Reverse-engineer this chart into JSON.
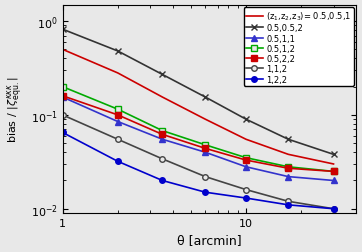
{
  "xlabel": "θ [arcmin]",
  "xlim": [
    1,
    40
  ],
  "ylim": [
    0.009,
    1.5
  ],
  "theta": [
    1.0,
    2.0,
    3.5,
    6.0,
    10.0,
    17.0,
    30.0
  ],
  "series": [
    {
      "label": "(z$_1$,z$_2$,z$_3$)= 0.5,0.5,1",
      "color": "#cc0000",
      "marker": "None",
      "markerface": "filled",
      "linestyle": "-",
      "markersize": 4,
      "lw": 1.2,
      "values": [
        0.5,
        0.28,
        0.155,
        0.09,
        0.055,
        0.038,
        0.03
      ]
    },
    {
      "label": "0.5,0.5,2",
      "color": "#333333",
      "marker": "x",
      "markerface": "filled",
      "linestyle": "-",
      "markersize": 5,
      "lw": 1.2,
      "values": [
        0.82,
        0.48,
        0.27,
        0.155,
        0.09,
        0.055,
        0.038
      ]
    },
    {
      "label": "0.5,1,1",
      "color": "#3333cc",
      "marker": "^",
      "markerface": "filled",
      "linestyle": "-",
      "markersize": 4,
      "lw": 1.2,
      "values": [
        0.155,
        0.085,
        0.055,
        0.04,
        0.028,
        0.022,
        0.02
      ]
    },
    {
      "label": "0.5,1,2",
      "color": "#00aa00",
      "marker": "s",
      "markerface": "open",
      "linestyle": "-",
      "markersize": 4,
      "lw": 1.2,
      "values": [
        0.2,
        0.115,
        0.068,
        0.048,
        0.035,
        0.028,
        0.025
      ]
    },
    {
      "label": "0.5,2,2",
      "color": "#cc0000",
      "marker": "s",
      "markerface": "filled",
      "linestyle": "-",
      "markersize": 4,
      "lw": 1.2,
      "values": [
        0.16,
        0.1,
        0.062,
        0.044,
        0.033,
        0.027,
        0.025
      ]
    },
    {
      "label": "1,1,2",
      "color": "#444444",
      "marker": "o",
      "markerface": "open",
      "linestyle": "-",
      "markersize": 4,
      "lw": 1.2,
      "values": [
        0.1,
        0.055,
        0.034,
        0.022,
        0.016,
        0.012,
        0.01
      ]
    },
    {
      "label": "1,2,2",
      "color": "#0000cc",
      "marker": "o",
      "markerface": "filled",
      "linestyle": "-",
      "markersize": 4,
      "lw": 1.2,
      "values": [
        0.065,
        0.032,
        0.02,
        0.015,
        0.013,
        0.011,
        0.01
      ]
    }
  ],
  "legend_labels": [
    "(z$_1$,z$_2$,z$_3$)= 0.5,0.5,1",
    "0.5,0.5,2",
    "0.5,1,1",
    "0.5,1,2",
    "0.5,2,2",
    "1,1,2",
    "1,2,2"
  ],
  "bg_color": "#e8e8e8"
}
